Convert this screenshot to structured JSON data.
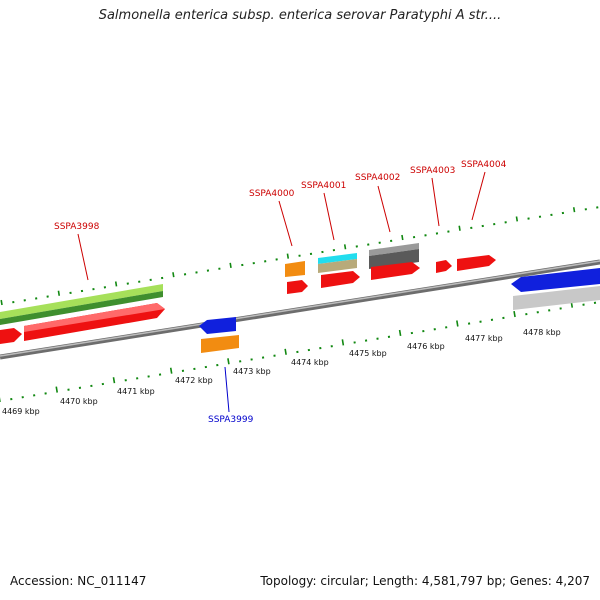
{
  "title": "Salmonella enterica subsp. enterica serovar Paratyphi A str....",
  "footer": {
    "accession": "Accession: NC_011147",
    "summary": "Topology: circular; Length: 4,581,797 bp; Genes: 4,207"
  },
  "colors": {
    "cds": "#ee1111",
    "label_top": "#cc0000",
    "label_bottom": "#0000cc",
    "backbone": "#8a8a8a",
    "tick": "#118811"
  },
  "kbp_labels": [
    "4469 kbp",
    "4470 kbp",
    "4471 kbp",
    "4472 kbp",
    "4473 kbp",
    "4474 kbp",
    "4475 kbp",
    "4476 kbp",
    "4477 kbp",
    "4478 kbp"
  ],
  "gene_labels": [
    {
      "text": "SSPA3998",
      "strand": "top"
    },
    {
      "text": "SSPA3999",
      "strand": "bottom"
    },
    {
      "text": "SSPA4000",
      "strand": "top"
    },
    {
      "text": "SSPA4001",
      "strand": "top"
    },
    {
      "text": "SSPA4002",
      "strand": "top"
    },
    {
      "text": "SSPA4003",
      "strand": "top"
    },
    {
      "text": "SSPA4004",
      "strand": "top"
    }
  ]
}
